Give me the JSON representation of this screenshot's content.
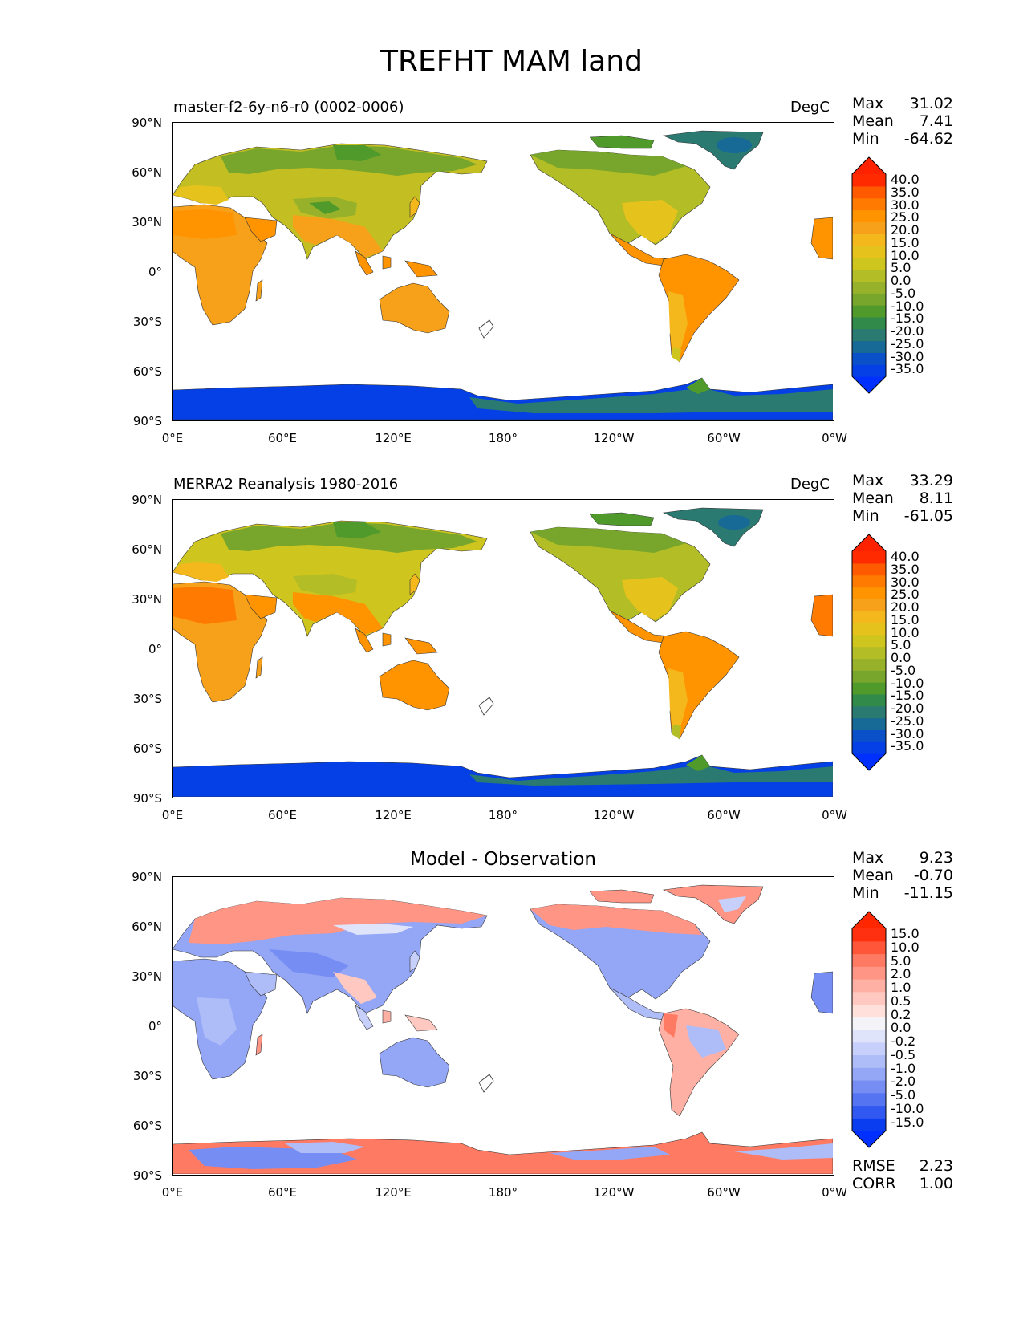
{
  "title": "TREFHT MAM land",
  "panels": [
    {
      "left_label": "master-f2-6y-n6-r0 (0002-0006)",
      "right_label": "DegC",
      "center_label": "",
      "stats": [
        {
          "label": "Max",
          "value": "31.02"
        },
        {
          "label": "Mean",
          "value": "7.41"
        },
        {
          "label": "Min",
          "value": "-64.62"
        }
      ],
      "colorbar": {
        "labels": [
          "40.0",
          "35.0",
          "30.0",
          "25.0",
          "20.0",
          "15.0",
          "10.0",
          "5.0",
          "0.0",
          "-5.0",
          "-10.0",
          "-15.0",
          "-20.0",
          "-25.0",
          "-30.0",
          "-35.0"
        ],
        "colors": [
          "#ff2a00",
          "#ff5a00",
          "#ff7a00",
          "#ff9300",
          "#f7a11a",
          "#f4b71c",
          "#e6c21d",
          "#cfc51f",
          "#b3bd25",
          "#97b22a",
          "#78a62c",
          "#4f9a2b",
          "#328a4a",
          "#2a7a72",
          "#176a95",
          "#0a50c8",
          "#0440e6"
        ],
        "over": "#ff2200",
        "under": "#0030ff"
      }
    },
    {
      "left_label": "MERRA2 Reanalysis 1980-2016",
      "right_label": "DegC",
      "center_label": "",
      "stats": [
        {
          "label": "Max",
          "value": "33.29"
        },
        {
          "label": "Mean",
          "value": "8.11"
        },
        {
          "label": "Min",
          "value": "-61.05"
        }
      ],
      "colorbar": {
        "labels": [
          "40.0",
          "35.0",
          "30.0",
          "25.0",
          "20.0",
          "15.0",
          "10.0",
          "5.0",
          "0.0",
          "-5.0",
          "-10.0",
          "-15.0",
          "-20.0",
          "-25.0",
          "-30.0",
          "-35.0"
        ],
        "colors": [
          "#ff2a00",
          "#ff5a00",
          "#ff7a00",
          "#ff9300",
          "#f7a11a",
          "#f4b71c",
          "#e6c21d",
          "#cfc51f",
          "#b3bd25",
          "#97b22a",
          "#78a62c",
          "#4f9a2b",
          "#328a4a",
          "#2a7a72",
          "#176a95",
          "#0a50c8",
          "#0440e6"
        ],
        "over": "#ff2200",
        "under": "#0030ff"
      }
    },
    {
      "left_label": "",
      "right_label": "",
      "center_label": "Model - Observation",
      "stats": [
        {
          "label": "Max",
          "value": "9.23"
        },
        {
          "label": "Mean",
          "value": "-0.70"
        },
        {
          "label": "Min",
          "value": "-11.15"
        }
      ],
      "bottom_stats": [
        {
          "label": "RMSE",
          "value": "2.23"
        },
        {
          "label": "CORR",
          "value": "1.00"
        }
      ],
      "colorbar": {
        "labels": [
          "15.0",
          "10.0",
          "5.0",
          "2.0",
          "1.0",
          "0.5",
          "0.2",
          "0.0",
          "-0.2",
          "-0.5",
          "-1.0",
          "-2.0",
          "-5.0",
          "-10.0",
          "-15.0"
        ],
        "colors": [
          "#ff3010",
          "#ff5538",
          "#ff7a62",
          "#ff9585",
          "#ffb0a4",
          "#ffc8c0",
          "#ffe0da",
          "#f4f4f8",
          "#dfe4fb",
          "#c6d0fb",
          "#aebcf8",
          "#94a6f6",
          "#768ef4",
          "#5574f2",
          "#3158f0",
          "#0a3cf0"
        ],
        "over": "#ff2600",
        "under": "#0030ff"
      }
    }
  ],
  "axes": {
    "y_ticks": [
      "90°N",
      "60°N",
      "30°N",
      "0°",
      "30°S",
      "60°S",
      "90°S"
    ],
    "x_ticks": [
      "0°E",
      "60°E",
      "120°E",
      "180°",
      "120°W",
      "60°W",
      "0°W"
    ]
  }
}
